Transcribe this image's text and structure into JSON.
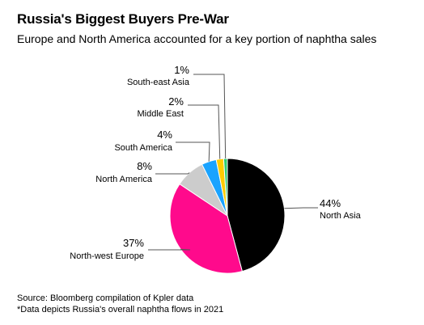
{
  "title": "Russia's Biggest Buyers Pre-War",
  "subtitle": "Europe and North America accounted for a key portion of naphtha sales",
  "footer": {
    "source": "Source: Bloomberg compilation of Kpler data",
    "note": "*Data depicts Russia's overall naphtha flows in 2021"
  },
  "chart_data": {
    "type": "pie",
    "title": "Russia's Biggest Buyers Pre-War",
    "subtitle": "Europe and North America accounted for a key portion of naphtha sales",
    "slices": [
      {
        "label": "North Asia",
        "value": 44,
        "display": "44%",
        "color": "#000000"
      },
      {
        "label": "North-west Europe",
        "value": 37,
        "display": "37%",
        "color": "#ff0a8c"
      },
      {
        "label": "North America",
        "value": 8,
        "display": "8%",
        "color": "#cccccc"
      },
      {
        "label": "South America",
        "value": 4,
        "display": "4%",
        "color": "#1aa3ff"
      },
      {
        "label": "Middle East",
        "value": 2,
        "display": "2%",
        "color": "#ffcc00"
      },
      {
        "label": "South-east Asia",
        "value": 1,
        "display": "1%",
        "color": "#2ecc71"
      }
    ]
  }
}
